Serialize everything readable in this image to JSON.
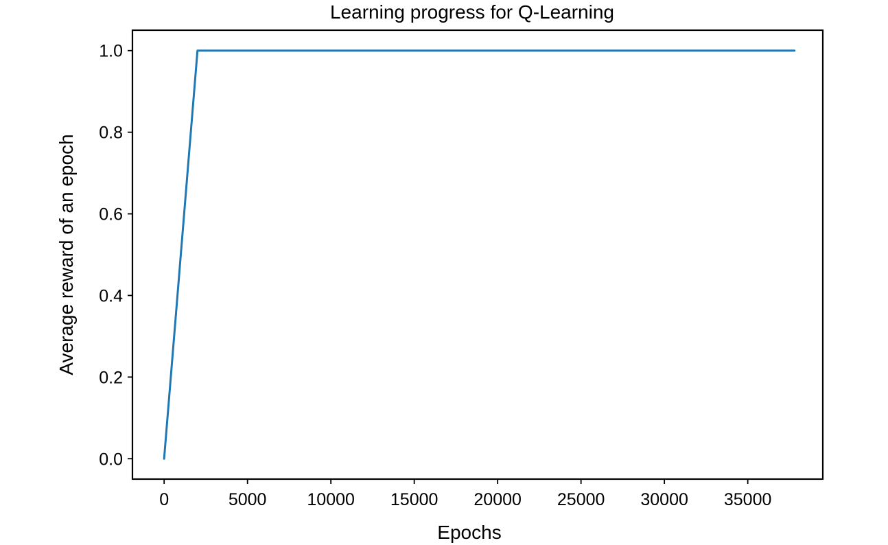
{
  "chart_data": {
    "type": "line",
    "title": "Learning progress for Q-Learning",
    "xlabel": "Epochs",
    "ylabel": "Average reward of an epoch",
    "xlim": [
      -1900,
      39500
    ],
    "ylim": [
      -0.05,
      1.05
    ],
    "xticks": [
      0,
      5000,
      10000,
      15000,
      20000,
      25000,
      30000,
      35000
    ],
    "xtick_labels": [
      "0",
      "5000",
      "10000",
      "15000",
      "20000",
      "25000",
      "30000",
      "35000"
    ],
    "yticks": [
      0.0,
      0.2,
      0.4,
      0.6,
      0.8,
      1.0
    ],
    "ytick_labels": [
      "0.0",
      "0.2",
      "0.4",
      "0.6",
      "0.8",
      "1.0"
    ],
    "grid": false,
    "legend": "none",
    "series": [
      {
        "color": "#1f77b4",
        "x": [
          0,
          2000,
          37800
        ],
        "y": [
          0.0,
          1.0,
          1.0
        ]
      }
    ]
  }
}
